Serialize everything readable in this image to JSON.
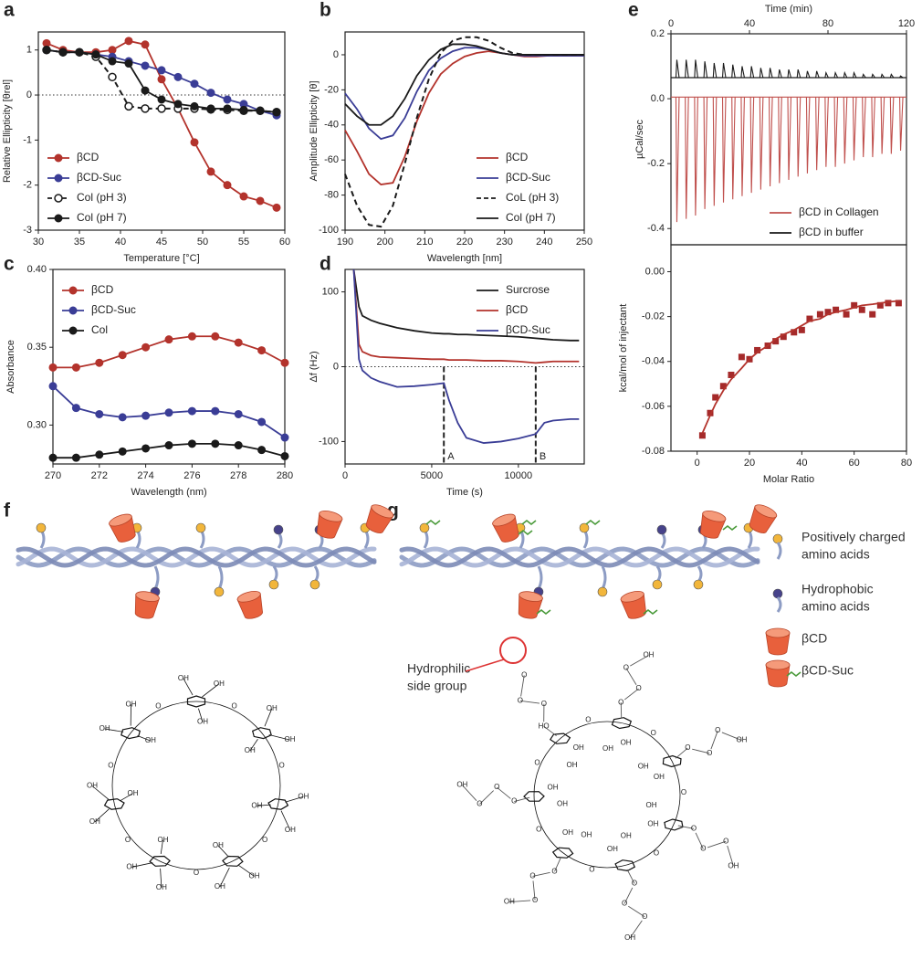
{
  "chart_data": [
    {
      "panel": "a",
      "type": "line",
      "xlabel": "Temperature [°C]",
      "ylabel": "Relative Ellipticity [θrel]",
      "x": [
        31,
        33,
        35,
        37,
        39,
        41,
        43,
        45,
        47,
        49,
        51,
        53,
        55,
        57,
        59
      ],
      "xlim": [
        30,
        60
      ],
      "xticks": [
        30,
        35,
        40,
        45,
        50,
        55,
        60
      ],
      "ylim": [
        -3,
        1.4
      ],
      "yticks": [
        -3,
        -2,
        -1,
        0,
        1
      ],
      "zero_line": true,
      "legend": "lower left",
      "series": [
        {
          "name": "βCD",
          "color": "#b3332c",
          "marker": "filled",
          "dash": false,
          "values": [
            1.15,
            1.0,
            0.95,
            0.95,
            1.0,
            1.2,
            1.12,
            0.35,
            -0.3,
            -1.05,
            -1.7,
            -2.0,
            -2.25,
            -2.35,
            -2.5
          ]
        },
        {
          "name": "βCD-Suc",
          "color": "#3a3d96",
          "marker": "filled",
          "dash": false,
          "values": [
            1.0,
            0.95,
            0.95,
            0.9,
            0.85,
            0.75,
            0.65,
            0.55,
            0.4,
            0.25,
            0.05,
            -0.1,
            -0.2,
            -0.35,
            -0.45
          ]
        },
        {
          "name": "Col (pH 3)",
          "color": "#1a1a1a",
          "marker": "open",
          "dash": true,
          "values": [
            1.0,
            0.95,
            0.95,
            0.85,
            0.4,
            -0.25,
            -0.3,
            -0.3,
            -0.3,
            -0.3,
            -0.32,
            -0.33,
            -0.35,
            -0.35,
            -0.38
          ]
        },
        {
          "name": "Col (pH 7)",
          "color": "#1a1a1a",
          "marker": "filled",
          "dash": false,
          "values": [
            1.0,
            0.95,
            0.95,
            0.9,
            0.75,
            0.7,
            0.1,
            -0.1,
            -0.2,
            -0.25,
            -0.3,
            -0.3,
            -0.33,
            -0.35,
            -0.38
          ]
        }
      ]
    },
    {
      "panel": "b",
      "type": "line",
      "xlabel": "Wavelength [nm]",
      "ylabel": "Amplitude Ellipticity [θ]",
      "x": [
        190,
        193,
        196,
        199,
        202,
        205,
        208,
        211,
        214,
        217,
        220,
        223,
        226,
        229,
        232,
        235,
        238,
        241,
        244,
        247,
        250
      ],
      "xlim": [
        190,
        250
      ],
      "xticks": [
        190,
        200,
        210,
        220,
        230,
        240,
        250
      ],
      "ylim": [
        -100,
        13
      ],
      "yticks": [
        -100,
        -80,
        -60,
        -40,
        -20,
        0
      ],
      "legend": "lower right",
      "series": [
        {
          "name": "βCD",
          "color": "#b3332c",
          "marker": "none",
          "dash": false,
          "values": [
            -43,
            -55,
            -68,
            -74,
            -73,
            -58,
            -38,
            -22,
            -11,
            -5,
            -1,
            1,
            2,
            1,
            0,
            -1,
            -1,
            -0.5,
            -0.5,
            -0.5,
            -0.5
          ]
        },
        {
          "name": "βCD-Suc",
          "color": "#3a3d96",
          "marker": "none",
          "dash": false,
          "values": [
            -22,
            -31,
            -42,
            -48,
            -46,
            -36,
            -21,
            -9,
            -2,
            2,
            4,
            4,
            3,
            1,
            0,
            -0.5,
            -0.5,
            -0.5,
            -0.5,
            -0.5,
            -0.5
          ]
        },
        {
          "name": "CoL (pH 3)",
          "color": "#1a1a1a",
          "marker": "none",
          "dash": true,
          "values": [
            -68,
            -86,
            -97,
            -98,
            -86,
            -62,
            -36,
            -14,
            1,
            8,
            10,
            10,
            8,
            4,
            1,
            0,
            0,
            0,
            0,
            0,
            0
          ]
        },
        {
          "name": "Col (pH 7)",
          "color": "#1a1a1a",
          "marker": "none",
          "dash": false,
          "values": [
            -28,
            -35,
            -40,
            -40,
            -35,
            -25,
            -12,
            -3,
            3,
            6,
            6,
            5,
            3,
            1,
            0,
            0,
            0,
            0,
            0,
            0,
            0
          ]
        }
      ]
    },
    {
      "panel": "c",
      "type": "line",
      "xlabel": "Wavelength (nm)",
      "ylabel": "Absorbance",
      "x": [
        270,
        271,
        272,
        273,
        274,
        275,
        276,
        277,
        278,
        279,
        280
      ],
      "xlim": [
        270,
        280
      ],
      "xticks": [
        270,
        272,
        274,
        276,
        278,
        280
      ],
      "ylim": [
        0.275,
        0.4
      ],
      "yticks": [
        {
          "value": 0.3,
          "label": "0.30"
        },
        0.35,
        {
          "value": 0.4,
          "label": "0.40"
        }
      ],
      "legend": "upper left",
      "series": [
        {
          "name": "βCD",
          "color": "#b3332c",
          "marker": "filled",
          "dash": false,
          "values": [
            0.337,
            0.337,
            0.34,
            0.345,
            0.35,
            0.355,
            0.357,
            0.357,
            0.353,
            0.348,
            0.34
          ]
        },
        {
          "name": "βCD-Suc",
          "color": "#3a3d96",
          "marker": "filled",
          "dash": false,
          "values": [
            0.325,
            0.311,
            0.307,
            0.305,
            0.306,
            0.308,
            0.309,
            0.309,
            0.307,
            0.302,
            0.292
          ]
        },
        {
          "name": "Col",
          "color": "#1a1a1a",
          "marker": "filled",
          "dash": false,
          "values": [
            0.279,
            0.279,
            0.281,
            0.283,
            0.285,
            0.287,
            0.288,
            0.288,
            0.287,
            0.284,
            0.28
          ]
        }
      ]
    },
    {
      "panel": "d",
      "type": "line",
      "xlabel": "Time (s)",
      "ylabel": "Δf (Hz)",
      "x": [
        500,
        800,
        1000,
        1500,
        2000,
        3000,
        4000,
        5000,
        5700,
        6000,
        6500,
        7000,
        8000,
        9000,
        10000,
        11000,
        11500,
        12000,
        13000,
        13500
      ],
      "xlim": [
        0,
        13800
      ],
      "xticks": [
        0,
        5000,
        10000
      ],
      "ylim": [
        -130,
        130
      ],
      "yticks": [
        -100,
        0,
        100
      ],
      "zero_line": true,
      "legend": "upper right",
      "vlines": [
        {
          "value": 5700,
          "label": "A"
        },
        {
          "value": 11000,
          "label": "B"
        }
      ],
      "series": [
        {
          "name": "Surcrose",
          "color": "#1a1a1a",
          "marker": "none",
          "dash": false,
          "values": [
            130,
            80,
            68,
            62,
            58,
            52,
            48,
            45,
            44,
            44,
            43,
            43,
            42,
            41,
            40,
            38,
            37,
            36,
            35,
            35
          ]
        },
        {
          "name": "βCD",
          "color": "#b3332c",
          "marker": "none",
          "dash": false,
          "values": [
            130,
            30,
            20,
            15,
            13,
            12,
            11,
            10,
            10,
            9,
            9,
            9,
            8,
            8,
            7,
            5,
            6,
            7,
            7,
            7
          ]
        },
        {
          "name": "βCD-Suc",
          "color": "#3a3d96",
          "marker": "none",
          "dash": false,
          "values": [
            130,
            10,
            -5,
            -15,
            -20,
            -27,
            -26,
            -24,
            -22,
            -45,
            -75,
            -95,
            -102,
            -100,
            -96,
            -90,
            -75,
            -72,
            -70,
            -70
          ]
        }
      ]
    },
    {
      "panel": "e",
      "type": "spike",
      "xlabel": "Time (min)",
      "ylabel": "µCal/sec",
      "x_axis": "top",
      "x": [
        3,
        7.75,
        12.5,
        17.25,
        22,
        26.75,
        31.5,
        36.25,
        41,
        45.75,
        50.5,
        55.25,
        60,
        64.75,
        69.5,
        74.25,
        79,
        83.75,
        88.5,
        93.25,
        98,
        102.75,
        107.5,
        112.25,
        117
      ],
      "xlim": [
        0,
        120
      ],
      "xticks": [
        0,
        40,
        80,
        120
      ],
      "ylim": [
        -0.45,
        0.2
      ],
      "yticks": [
        -0.4,
        -0.2,
        {
          "value": 0,
          "label": "0.0"
        },
        0.2
      ],
      "legend": "lower right",
      "series": [
        {
          "name": "βCD in Collagen",
          "color": "#c0504d",
          "baseline": 0.005,
          "values": [
            -0.38,
            -0.37,
            -0.36,
            -0.34,
            -0.33,
            -0.32,
            -0.31,
            -0.3,
            -0.29,
            -0.28,
            -0.27,
            -0.26,
            -0.25,
            -0.24,
            -0.23,
            -0.22,
            -0.21,
            -0.21,
            -0.2,
            -0.19,
            -0.18,
            -0.18,
            -0.17,
            -0.17,
            -0.16
          ]
        },
        {
          "name": "βCD in buffer",
          "color": "#1a1a1a",
          "baseline": 0.065,
          "values": [
            0.12,
            0.12,
            0.12,
            0.115,
            0.11,
            0.11,
            0.105,
            0.1,
            0.1,
            0.095,
            0.095,
            0.09,
            0.09,
            0.09,
            0.085,
            0.085,
            0.08,
            0.08,
            0.08,
            0.08,
            0.075,
            0.075,
            0.075,
            0.075,
            0.07
          ]
        }
      ]
    },
    {
      "type": "scatter",
      "xlabel": "Molar Ratio",
      "ylabel": "kcal/mol of injectant",
      "x": [
        2,
        5,
        7,
        10,
        13,
        17,
        20,
        23,
        27,
        30,
        33,
        37,
        40,
        43,
        47,
        50,
        53,
        57,
        60,
        63,
        67,
        70,
        73,
        77
      ],
      "xlim": [
        -10,
        80
      ],
      "xticks": [
        0,
        20,
        40,
        60,
        80
      ],
      "ylim": [
        -0.08,
        0.012
      ],
      "yticks": [
        -0.08,
        -0.06,
        -0.04,
        -0.02,
        {
          "value": 0,
          "label": "0.00"
        }
      ],
      "series": [
        {
          "color": "#a52a2a",
          "marker": "square",
          "line": false,
          "values": [
            -0.073,
            -0.063,
            -0.056,
            -0.051,
            -0.046,
            -0.038,
            -0.039,
            -0.035,
            -0.033,
            -0.031,
            -0.029,
            -0.027,
            -0.026,
            -0.021,
            -0.019,
            -0.018,
            -0.017,
            -0.019,
            -0.015,
            -0.017,
            -0.019,
            -0.015,
            -0.014,
            -0.014
          ]
        },
        {
          "color": "#b3332c",
          "marker": "none",
          "line": true,
          "values": [
            -0.072,
            -0.064,
            -0.059,
            -0.053,
            -0.048,
            -0.043,
            -0.039,
            -0.036,
            -0.033,
            -0.03,
            -0.028,
            -0.026,
            -0.024,
            -0.022,
            -0.021,
            -0.019,
            -0.018,
            -0.017,
            -0.016,
            -0.015,
            -0.0145,
            -0.014,
            -0.0135,
            -0.013
          ]
        }
      ]
    }
  ],
  "panel_f": {
    "panel": "f",
    "structure": {
      "units": [
        [
          "OH",
          "OH",
          "OH",
          "O"
        ],
        [
          "OH",
          "OH",
          "OH",
          "O"
        ],
        [
          "OH",
          "OH",
          "OH",
          "O"
        ],
        [
          "OH",
          "OH",
          "OH",
          "O"
        ],
        [
          "OH",
          "OH",
          "OH",
          "O"
        ],
        [
          "OH",
          "OH",
          "OH",
          "O"
        ],
        [
          "OH",
          "OH",
          "OH",
          "O"
        ]
      ]
    }
  },
  "panel_g": {
    "panel": "g",
    "legend": [
      {
        "lines": [
          "Positively charged",
          "amino acids"
        ]
      },
      {
        "lines": [
          "Hydrophobic",
          "amino acids"
        ]
      },
      {
        "lines": [
          "βCD"
        ]
      },
      {
        "lines": [
          "βCD-Suc"
        ]
      }
    ],
    "callout": [
      "Hydrophilic",
      "side group"
    ],
    "structure": {
      "units": [
        {
          "ring": [
            "OH",
            "OH"
          ],
          "link": "O",
          "chain": [
            "O",
            "O",
            "O",
            "OH"
          ]
        },
        {
          "ring": [
            "OH",
            "OH"
          ],
          "link": "O",
          "chain": [
            "O",
            "O",
            "O",
            "OH"
          ]
        },
        {
          "ring": [
            "OH",
            "OH"
          ],
          "link": "O",
          "chain": [
            "O",
            "O",
            "O",
            "OH"
          ]
        },
        {
          "ring": [
            "OH",
            "OH"
          ],
          "link": "O",
          "chain": [
            "O",
            "O",
            "O",
            "OH"
          ]
        },
        {
          "ring": [
            "OH",
            "OH"
          ],
          "link": "O",
          "chain": [
            "O",
            "O",
            "O",
            "OH"
          ]
        },
        {
          "ring": [
            "OH",
            "OH"
          ],
          "link": "O",
          "chain": [
            "O",
            "O",
            "O",
            "OH"
          ]
        },
        {
          "ring": [
            "OH",
            "OH"
          ],
          "link": "O",
          "chain": [
            "HO",
            "O",
            "O",
            "O"
          ]
        }
      ]
    }
  }
}
